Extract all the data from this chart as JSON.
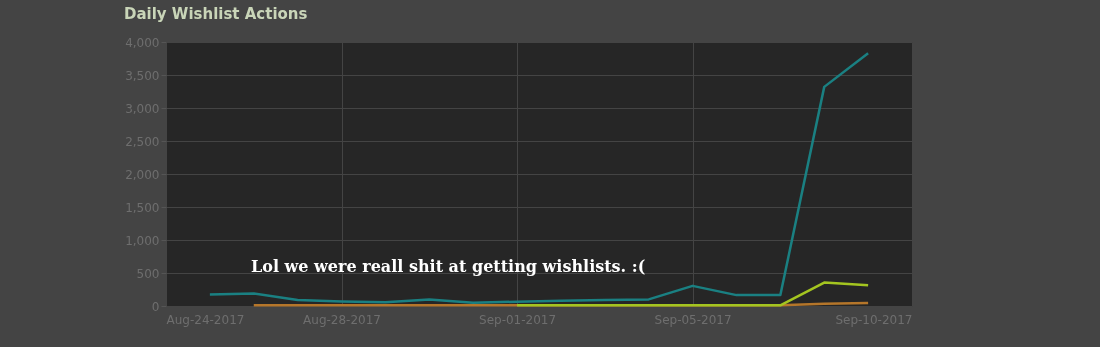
{
  "chart_data": {
    "type": "line",
    "title": "Daily Wishlist Actions",
    "annotations": [
      "Lol we were reall shit at getting wishlists. :("
    ],
    "x": [
      "2017-08-25",
      "2017-08-26",
      "2017-08-27",
      "2017-08-28",
      "2017-08-29",
      "2017-08-30",
      "2017-08-31",
      "2017-09-01",
      "2017-09-02",
      "2017-09-03",
      "2017-09-04",
      "2017-09-05",
      "2017-09-06",
      "2017-09-07",
      "2017-09-08",
      "2017-09-09"
    ],
    "series": [
      {
        "color": "#b5762a",
        "values": [
          null,
          10,
          10,
          10,
          10,
          10,
          10,
          10,
          10,
          10,
          10,
          10,
          10,
          10,
          35,
          45
        ]
      },
      {
        "color": "#a4c520",
        "values": [
          null,
          null,
          null,
          null,
          null,
          null,
          null,
          10,
          10,
          10,
          10,
          10,
          10,
          10,
          355,
          315
        ]
      },
      {
        "color": "#1a8082",
        "values": [
          175,
          190,
          90,
          70,
          55,
          100,
          50,
          65,
          80,
          90,
          100,
          305,
          165,
          165,
          3320,
          3830
        ]
      }
    ],
    "xlim": [
      "2017-08-24",
      "2017-09-10"
    ],
    "xticks": [
      {
        "value": "2017-08-24",
        "label": "Aug-24-2017"
      },
      {
        "value": "2017-08-28",
        "label": "Aug-28-2017"
      },
      {
        "value": "2017-09-01",
        "label": "Sep-01-2017"
      },
      {
        "value": "2017-09-05",
        "label": "Sep-05-2017"
      },
      {
        "value": "2017-09-10",
        "label": "Sep-10-2017"
      }
    ],
    "ylim": [
      0,
      4000
    ],
    "yticks": [
      {
        "value": 0,
        "label": "0"
      },
      {
        "value": 500,
        "label": "500"
      },
      {
        "value": 1000,
        "label": "1,000"
      },
      {
        "value": 1500,
        "label": "1,500"
      },
      {
        "value": 2000,
        "label": "2,000"
      },
      {
        "value": 2500,
        "label": "2,500"
      },
      {
        "value": 3000,
        "label": "3,000"
      },
      {
        "value": 3500,
        "label": "3,500"
      },
      {
        "value": 4000,
        "label": "4,000"
      }
    ],
    "grid": true
  }
}
